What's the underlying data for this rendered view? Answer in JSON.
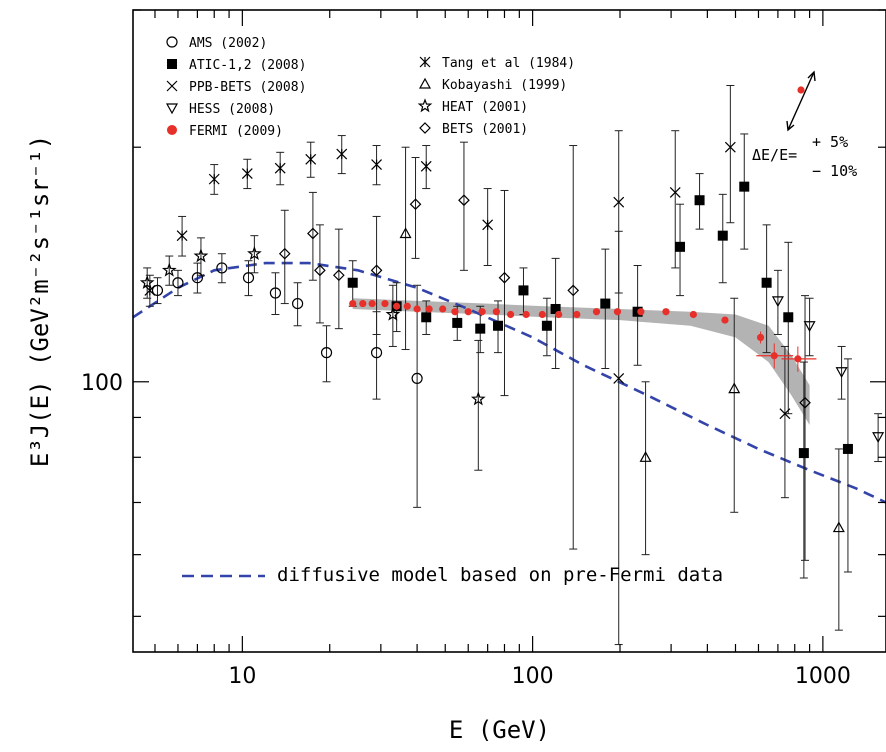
{
  "chart_data": {
    "type": "scatter",
    "xlabel": "E (GeV)",
    "ylabel": "E³J(E)  (GeV²m⁻²s⁻¹sr⁻¹)",
    "x_scale": "log",
    "y_scale": "log",
    "xlim": [
      4.2,
      1650
    ],
    "ylim": [
      45,
      300
    ],
    "x_ticks": [
      {
        "value": 10,
        "label": "10"
      },
      {
        "value": 100,
        "label": "100"
      },
      {
        "value": 1000,
        "label": "1000"
      }
    ],
    "y_ticks": [
      {
        "value": 100,
        "label": "100"
      }
    ],
    "legend_position": "top-left",
    "legend": [
      {
        "label": "AMS (2002)",
        "marker": "circle"
      },
      {
        "label": "ATIC-1,2 (2008)",
        "marker": "filled-square"
      },
      {
        "label": "PPB-BETS (2008)",
        "marker": "cross"
      },
      {
        "label": "HESS (2008)",
        "marker": "down-triangle"
      },
      {
        "label": "FERMI (2009)",
        "marker": "red-dot"
      },
      {
        "label": "Tang et al (1984)",
        "marker": "asterisk"
      },
      {
        "label": "Kobayashi (1999)",
        "marker": "triangle"
      },
      {
        "label": "HEAT (2001)",
        "marker": "star"
      },
      {
        "label": "BETS (2001)",
        "marker": "diamond"
      }
    ],
    "energy_scale_note": {
      "prefix": "ΔE/E=",
      "plus": "+ 5%",
      "minus": "− 10%"
    },
    "model_label": "diffusive model based on pre-Fermi data",
    "model_curve": {
      "style": "dashed",
      "color": "#3344aa",
      "x": [
        4.2,
        6,
        8,
        12,
        17,
        25,
        40,
        60,
        100,
        150,
        250,
        400,
        600,
        900,
        1300,
        1650
      ],
      "y": [
        121,
        132,
        139,
        142,
        142,
        139,
        132,
        124,
        114,
        105,
        96,
        88,
        82,
        77,
        73,
        70
      ]
    },
    "fermi_band": {
      "x": [
        24,
        40,
        70,
        110,
        200,
        350,
        500,
        650,
        780,
        900
      ],
      "upper": [
        128,
        127,
        126,
        125,
        124,
        123,
        122,
        118,
        108,
        99
      ],
      "lower": [
        124,
        123,
        122,
        121,
        120,
        118,
        114,
        106,
        96,
        88
      ]
    },
    "series": [
      {
        "name": "FERMI (2009)",
        "marker": "red-dot",
        "color": "#e8302a",
        "points": [
          {
            "x": 24,
            "y": 126
          },
          {
            "x": 26,
            "y": 126
          },
          {
            "x": 28,
            "y": 126
          },
          {
            "x": 31,
            "y": 126
          },
          {
            "x": 34,
            "y": 125
          },
          {
            "x": 37,
            "y": 125
          },
          {
            "x": 40,
            "y": 124
          },
          {
            "x": 44,
            "y": 124
          },
          {
            "x": 49,
            "y": 124
          },
          {
            "x": 54,
            "y": 123
          },
          {
            "x": 60,
            "y": 123
          },
          {
            "x": 67,
            "y": 123
          },
          {
            "x": 75,
            "y": 123
          },
          {
            "x": 84,
            "y": 122
          },
          {
            "x": 95,
            "y": 122
          },
          {
            "x": 108,
            "y": 122
          },
          {
            "x": 123,
            "y": 122
          },
          {
            "x": 142,
            "y": 122
          },
          {
            "x": 166,
            "y": 123
          },
          {
            "x": 196,
            "y": 123
          },
          {
            "x": 236,
            "y": 123
          },
          {
            "x": 288,
            "y": 123
          },
          {
            "x": 358,
            "y": 122
          },
          {
            "x": 460,
            "y": 120
          },
          {
            "x": 610,
            "y": 114,
            "yerr": 2
          },
          {
            "x": 680,
            "y": 108,
            "yerr": 4,
            "xerr": [
              590,
              790
            ]
          },
          {
            "x": 820,
            "y": 107,
            "yerr": 4,
            "xerr": [
              720,
              950
            ]
          }
        ]
      },
      {
        "name": "AMS (2002)",
        "marker": "circle",
        "points": [
          {
            "x": 5.1,
            "y": 131,
            "yerr": 5
          },
          {
            "x": 6.0,
            "y": 134,
            "yerr": 5
          },
          {
            "x": 7.0,
            "y": 136,
            "yerr": 6
          },
          {
            "x": 8.5,
            "y": 140,
            "yerr": 6
          },
          {
            "x": 10.5,
            "y": 136,
            "yerr": 7
          },
          {
            "x": 13,
            "y": 130,
            "yerr": 8
          },
          {
            "x": 15.5,
            "y": 126,
            "yerr": 8
          },
          {
            "x": 19.5,
            "y": 109,
            "yerr": 9
          },
          {
            "x": 29,
            "y": 109,
            "yerr": 14
          },
          {
            "x": 40,
            "y": 101,
            "yerr": 32
          }
        ]
      },
      {
        "name": "ATIC-1,2 (2008)",
        "marker": "filled-square",
        "points": [
          {
            "x": 24,
            "y": 134,
            "yerr": 9
          },
          {
            "x": 34,
            "y": 125,
            "yerr": 9
          },
          {
            "x": 43,
            "y": 121,
            "yerr": 6
          },
          {
            "x": 55,
            "y": 119,
            "yerr": 6
          },
          {
            "x": 66,
            "y": 117,
            "yerr": 8
          },
          {
            "x": 76,
            "y": 118,
            "yerr": 9
          },
          {
            "x": 93,
            "y": 131,
            "yerr": 9
          },
          {
            "x": 112,
            "y": 118,
            "yerr": 10
          },
          {
            "x": 120,
            "y": 124,
            "yerr": 20
          },
          {
            "x": 178,
            "y": 126,
            "yerr": 22
          },
          {
            "x": 230,
            "y": 123,
            "yerr": 18
          },
          {
            "x": 322,
            "y": 149,
            "yerr": 20
          },
          {
            "x": 376,
            "y": 171,
            "yerr": 14
          },
          {
            "x": 452,
            "y": 154,
            "yerr": 20
          },
          {
            "x": 536,
            "y": 178,
            "yerr": 30
          },
          {
            "x": 640,
            "y": 134,
            "yerr": 25
          },
          {
            "x": 760,
            "y": 121,
            "yerr": 30
          },
          {
            "x": 860,
            "y": 81,
            "yerr": 25
          },
          {
            "x": 1220,
            "y": 82,
            "yerr": 25
          }
        ]
      },
      {
        "name": "PPB-BETS (2008)",
        "marker": "cross",
        "points": [
          {
            "x": 198,
            "y": 170,
            "yerr": 40
          },
          {
            "x": 198,
            "y": 101,
            "yerr": 55
          },
          {
            "x": 310,
            "y": 175,
            "yerr": 35
          },
          {
            "x": 480,
            "y": 200,
            "yerr": 40
          },
          {
            "x": 740,
            "y": 91,
            "yerr": 20
          }
        ]
      },
      {
        "name": "HESS (2008)",
        "marker": "down-triangle",
        "points": [
          {
            "x": 700,
            "y": 127,
            "yerr": 12
          },
          {
            "x": 900,
            "y": 118,
            "yerr": 10
          },
          {
            "x": 1160,
            "y": 103,
            "yerr": 8
          },
          {
            "x": 1550,
            "y": 85,
            "yerr": 6
          }
        ]
      },
      {
        "name": "Tang et al (1984)",
        "marker": "asterisk",
        "points": [
          {
            "x": 4.8,
            "y": 131,
            "yerr": 6
          },
          {
            "x": 6.2,
            "y": 154,
            "yerr": 9
          },
          {
            "x": 8.0,
            "y": 182,
            "yerr": 8
          },
          {
            "x": 10.4,
            "y": 185,
            "yerr": 8
          },
          {
            "x": 13.5,
            "y": 188,
            "yerr": 9
          },
          {
            "x": 17.2,
            "y": 193,
            "yerr": 10
          },
          {
            "x": 22,
            "y": 196,
            "yerr": 11
          },
          {
            "x": 29,
            "y": 190,
            "yerr": 11
          },
          {
            "x": 43,
            "y": 189,
            "yerr": 12
          },
          {
            "x": 70,
            "y": 159,
            "yerr": 18
          }
        ]
      },
      {
        "name": "Kobayashi (1999)",
        "marker": "triangle",
        "points": [
          {
            "x": 36.5,
            "y": 155,
            "yerr": 45
          },
          {
            "x": 245,
            "y": 80,
            "yerr": 20
          },
          {
            "x": 495,
            "y": 98,
            "yerr": 30
          },
          {
            "x": 1135,
            "y": 65,
            "yerr": 17
          }
        ]
      },
      {
        "name": "HEAT (2001)",
        "marker": "star",
        "points": [
          {
            "x": 4.7,
            "y": 134,
            "yerr": 6
          },
          {
            "x": 5.6,
            "y": 139,
            "yerr": 6
          },
          {
            "x": 7.2,
            "y": 145,
            "yerr": 8
          },
          {
            "x": 11,
            "y": 146,
            "yerr": 8
          },
          {
            "x": 33,
            "y": 122,
            "yerr": 11
          },
          {
            "x": 65,
            "y": 95,
            "yerr": 18
          }
        ]
      },
      {
        "name": "BETS (2001)",
        "marker": "diamond",
        "points": [
          {
            "x": 14,
            "y": 146,
            "yerr": 20
          },
          {
            "x": 17.5,
            "y": 155,
            "yerr": 20
          },
          {
            "x": 18.5,
            "y": 139,
            "yerr": 20
          },
          {
            "x": 21.5,
            "y": 137,
            "yerr": 20
          },
          {
            "x": 29,
            "y": 139,
            "yerr": 24
          },
          {
            "x": 39.5,
            "y": 169,
            "yerr": 25
          },
          {
            "x": 58,
            "y": 171,
            "yerr": 32
          },
          {
            "x": 80,
            "y": 136,
            "yerr": 40
          },
          {
            "x": 138,
            "y": 131,
            "yerr": 70
          },
          {
            "x": 868,
            "y": 94,
            "yerr": 35
          }
        ]
      }
    ]
  }
}
